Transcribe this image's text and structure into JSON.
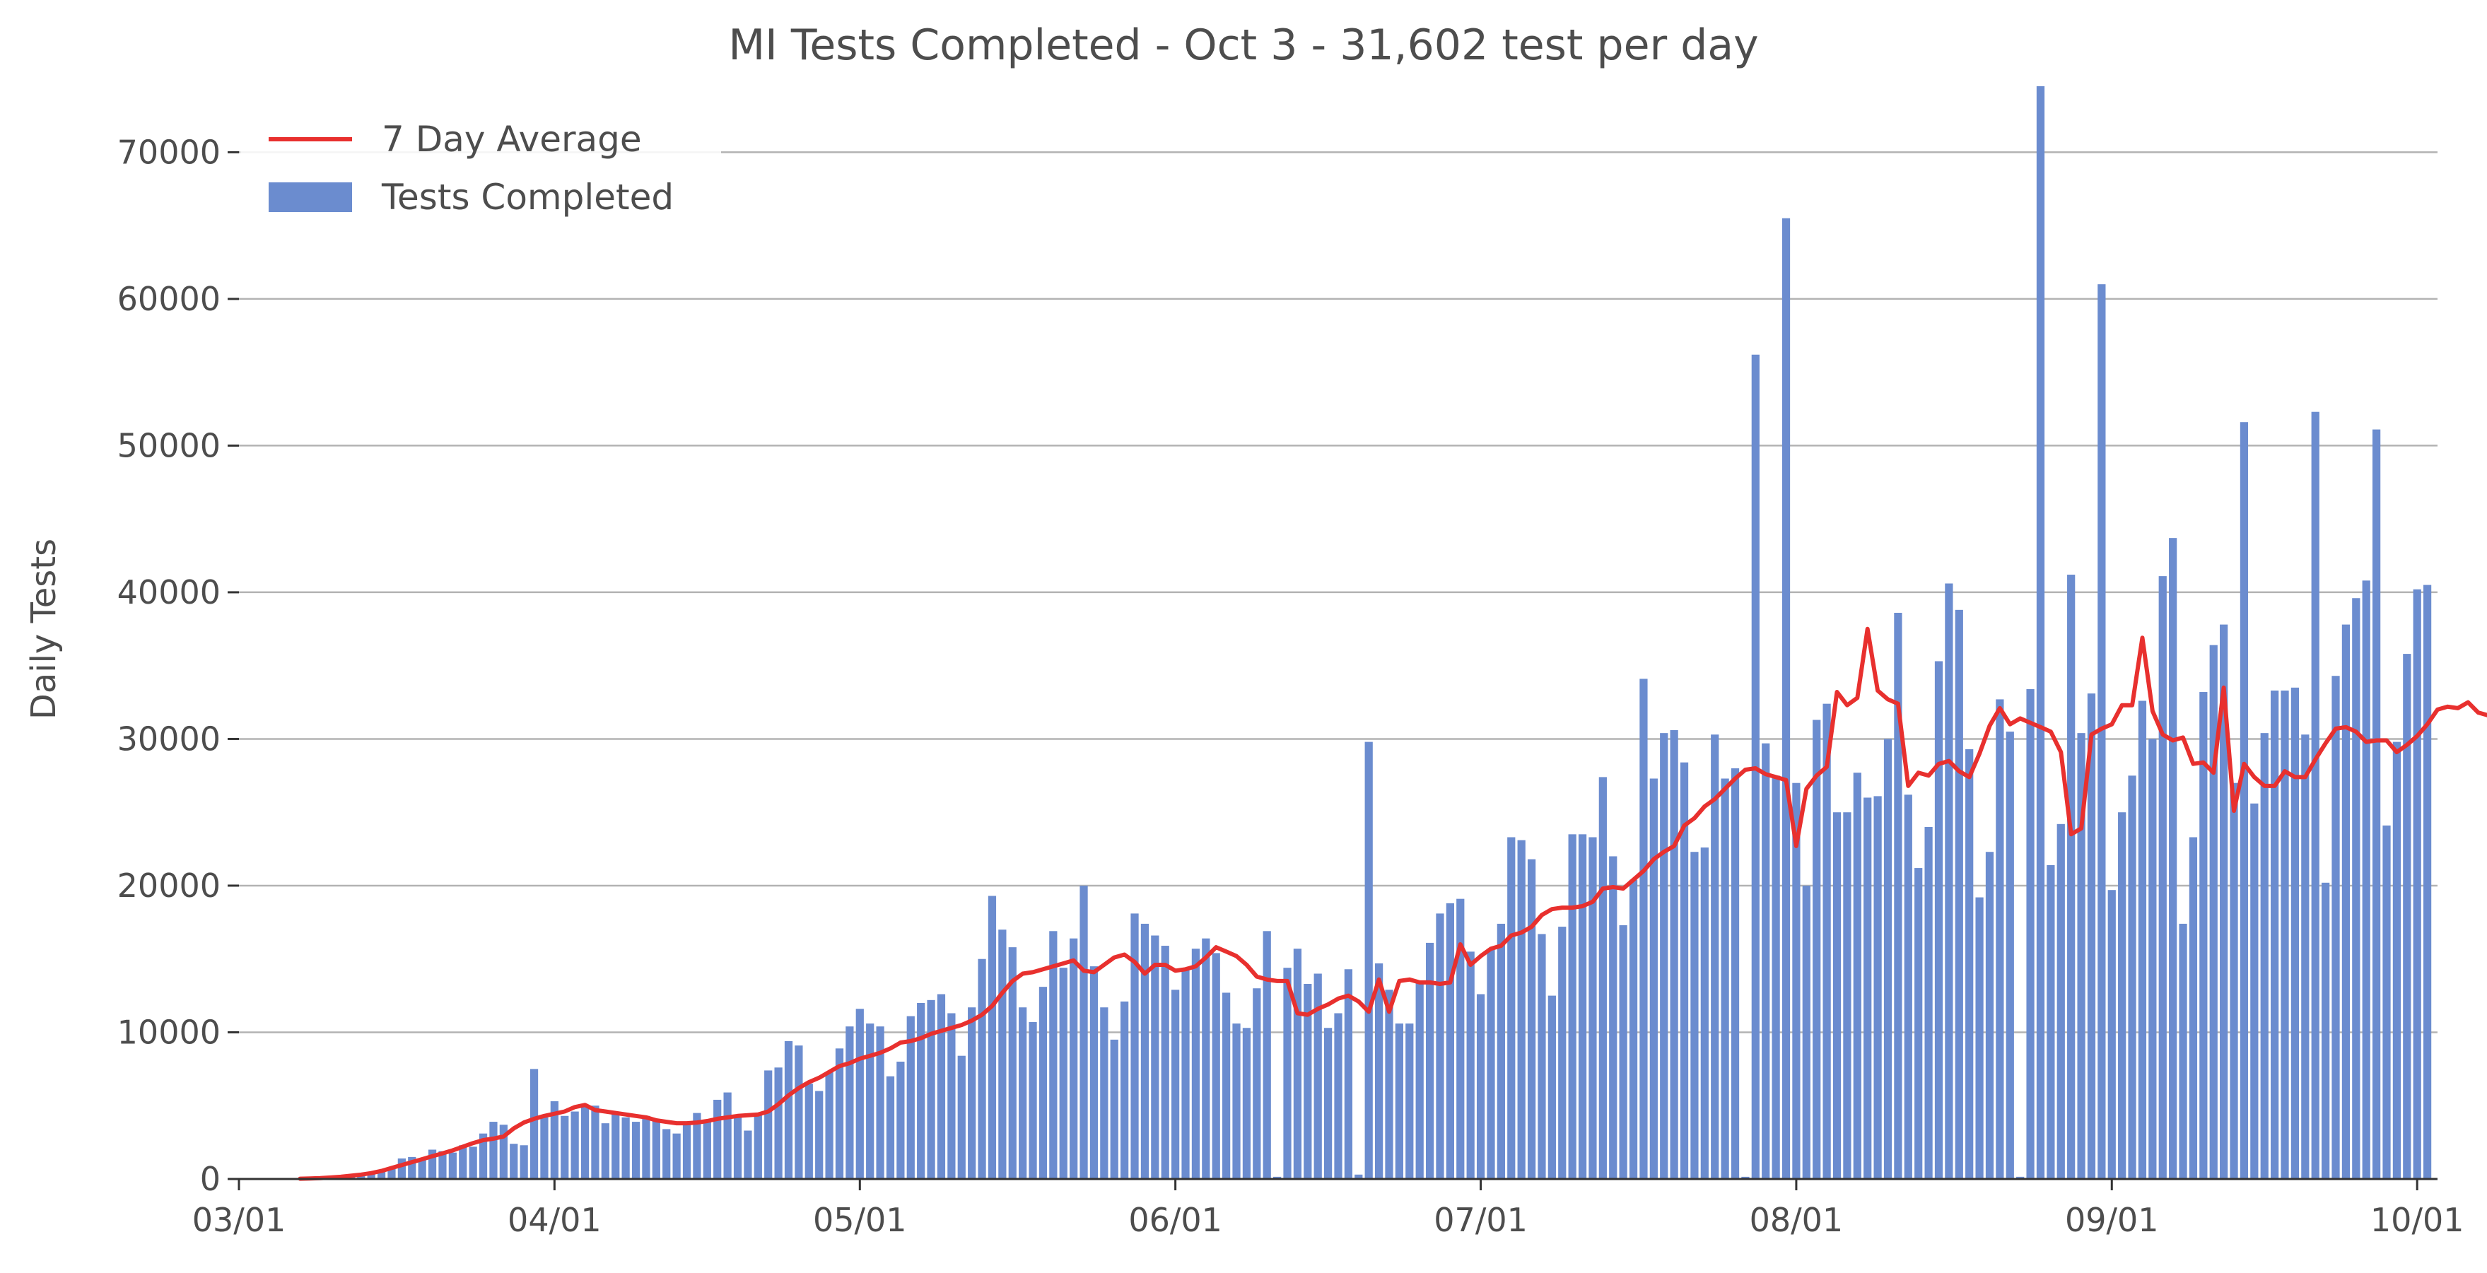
{
  "chart_data": {
    "type": "bar",
    "title": "MI Tests Completed - Oct 3 - 31,602 test per day",
    "xlabel": "",
    "ylabel": "Daily Tests",
    "x_start_date": "2020-03-01",
    "x_end_date": "2020-10-03",
    "xlim": [
      "2020-03-01",
      "2020-10-03"
    ],
    "ylim": [
      0,
      74500
    ],
    "yticks": [
      0,
      10000,
      20000,
      30000,
      40000,
      50000,
      60000,
      70000
    ],
    "xticks": [
      {
        "date": "2020-03-01",
        "label": "03/01"
      },
      {
        "date": "2020-04-01",
        "label": "04/01"
      },
      {
        "date": "2020-05-01",
        "label": "05/01"
      },
      {
        "date": "2020-06-01",
        "label": "06/01"
      },
      {
        "date": "2020-07-01",
        "label": "07/01"
      },
      {
        "date": "2020-08-01",
        "label": "08/01"
      },
      {
        "date": "2020-09-01",
        "label": "09/01"
      },
      {
        "date": "2020-10-01",
        "label": "10/01"
      }
    ],
    "grid": "horizontal",
    "legend_position": "top-left",
    "series": [
      {
        "name": "7 Day Average",
        "kind": "line",
        "color": "#e8302e",
        "start_date": "2020-03-07",
        "values": [
          20,
          40,
          60,
          100,
          150,
          220,
          300,
          400,
          550,
          750,
          950,
          1150,
          1350,
          1550,
          1750,
          1950,
          2200,
          2450,
          2650,
          2750,
          2900,
          3450,
          3850,
          4100,
          4300,
          4450,
          4600,
          4900,
          5050,
          4700,
          4600,
          4500,
          4400,
          4300,
          4200,
          4000,
          3900,
          3800,
          3800,
          3850,
          3950,
          4100,
          4200,
          4300,
          4350,
          4400,
          4600,
          5100,
          5700,
          6200,
          6600,
          6900,
          7300,
          7700,
          7900,
          8200,
          8400,
          8600,
          8900,
          9300,
          9400,
          9600,
          9900,
          10100,
          10300,
          10500,
          10800,
          11200,
          11800,
          12700,
          13500,
          14000,
          14100,
          14300,
          14500,
          14700,
          14900,
          14200,
          14100,
          14600,
          15100,
          15300,
          14800,
          14000,
          14600,
          14600,
          14200,
          14300,
          14500,
          15100,
          15800,
          15500,
          15200,
          14600,
          13800,
          13600,
          13500,
          13500,
          11300,
          11200,
          11600,
          11900,
          12300,
          12500,
          12100,
          11400,
          13600,
          11400,
          13500,
          13600,
          13400,
          13400,
          13300,
          13400,
          16000,
          14600,
          15200,
          15700,
          15900,
          16600,
          16800,
          17200,
          18000,
          18400,
          18500,
          18500,
          18600,
          18900,
          19800,
          19900,
          19800,
          20400,
          21000,
          21800,
          22300,
          22700,
          24100,
          24600,
          25400,
          25900,
          26600,
          27300,
          27900,
          28000,
          27600,
          27400,
          27200,
          22700,
          26600,
          27500,
          28100,
          33200,
          32300,
          32800,
          37500,
          33300,
          32700,
          32400,
          26800,
          27700,
          27500,
          28300,
          28500,
          27800,
          27400,
          29000,
          30900,
          32100,
          31000,
          31400,
          31100,
          30800,
          30500,
          29100,
          23500,
          23900,
          30300,
          30700,
          31000,
          32300,
          32300,
          36900,
          31900,
          30300,
          29900,
          30100,
          28300,
          28400,
          27700,
          33500,
          25100,
          28300,
          27400,
          26800,
          26800,
          27800,
          27400,
          27400,
          28600,
          29700,
          30700,
          30800,
          30500,
          29800,
          29900,
          29900,
          29100,
          29600,
          30200,
          31000,
          32000,
          32200,
          32100,
          32500,
          31800,
          31600,
          31700,
          31602
        ]
      },
      {
        "name": "Tests Completed",
        "kind": "bar",
        "color": "#6b8ccf",
        "start_date": "2020-03-07",
        "values": [
          20,
          30,
          50,
          80,
          120,
          180,
          250,
          350,
          500,
          800,
          1400,
          1500,
          1400,
          2000,
          1900,
          1800,
          2300,
          2200,
          3100,
          3900,
          3700,
          2400,
          2300,
          7500,
          4200,
          5300,
          4300,
          4600,
          5000,
          5000,
          3800,
          4500,
          4200,
          3900,
          4300,
          4000,
          3400,
          3100,
          3800,
          4500,
          4000,
          5400,
          5900,
          4200,
          3300,
          4400,
          7400,
          7600,
          9400,
          9100,
          6500,
          6000,
          7300,
          8900,
          10400,
          11600,
          10600,
          10400,
          7000,
          8000,
          11100,
          12000,
          12200,
          12600,
          11300,
          8400,
          11700,
          15000,
          19300,
          17000,
          15800,
          11700,
          10700,
          13100,
          16900,
          14400,
          16400,
          20000,
          14500,
          11700,
          9500,
          12100,
          18100,
          17400,
          16600,
          15900,
          12900,
          14400,
          15700,
          16400,
          15400,
          12700,
          10600,
          10300,
          13000,
          16900,
          150,
          14400,
          15700,
          13300,
          14000,
          10300,
          11300,
          14300,
          300,
          29800,
          14700,
          12900,
          10600,
          10600,
          13500,
          16100,
          18100,
          18800,
          19100,
          15500,
          12600,
          15700,
          17400,
          23300,
          23100,
          21800,
          16700,
          12500,
          17200,
          23500,
          23500,
          23300,
          27400,
          22000,
          17300,
          20400,
          34100,
          27300,
          30400,
          30600,
          28400,
          22300,
          22600,
          30300,
          27300,
          28000,
          150,
          56200,
          29700,
          27500,
          65500,
          27000,
          20000,
          31300,
          32400,
          25000,
          25000,
          27700,
          26000,
          26100,
          30000,
          38600,
          26200,
          21200,
          24000,
          35300,
          40600,
          38800,
          29300,
          19200,
          22300,
          32700,
          30500,
          150,
          33400,
          74500,
          21400,
          24200,
          41200,
          30400,
          33100,
          61000,
          19700,
          25000,
          27500,
          32600,
          30000,
          41100,
          43700,
          17400,
          23300,
          33200,
          36400,
          37800,
          27000,
          51600,
          25600,
          30400,
          33300,
          33300,
          33500,
          30300,
          52300,
          20200,
          34300,
          37800,
          39600,
          40800,
          51100,
          24100,
          29800,
          35800,
          40200,
          40500
        ]
      }
    ]
  }
}
